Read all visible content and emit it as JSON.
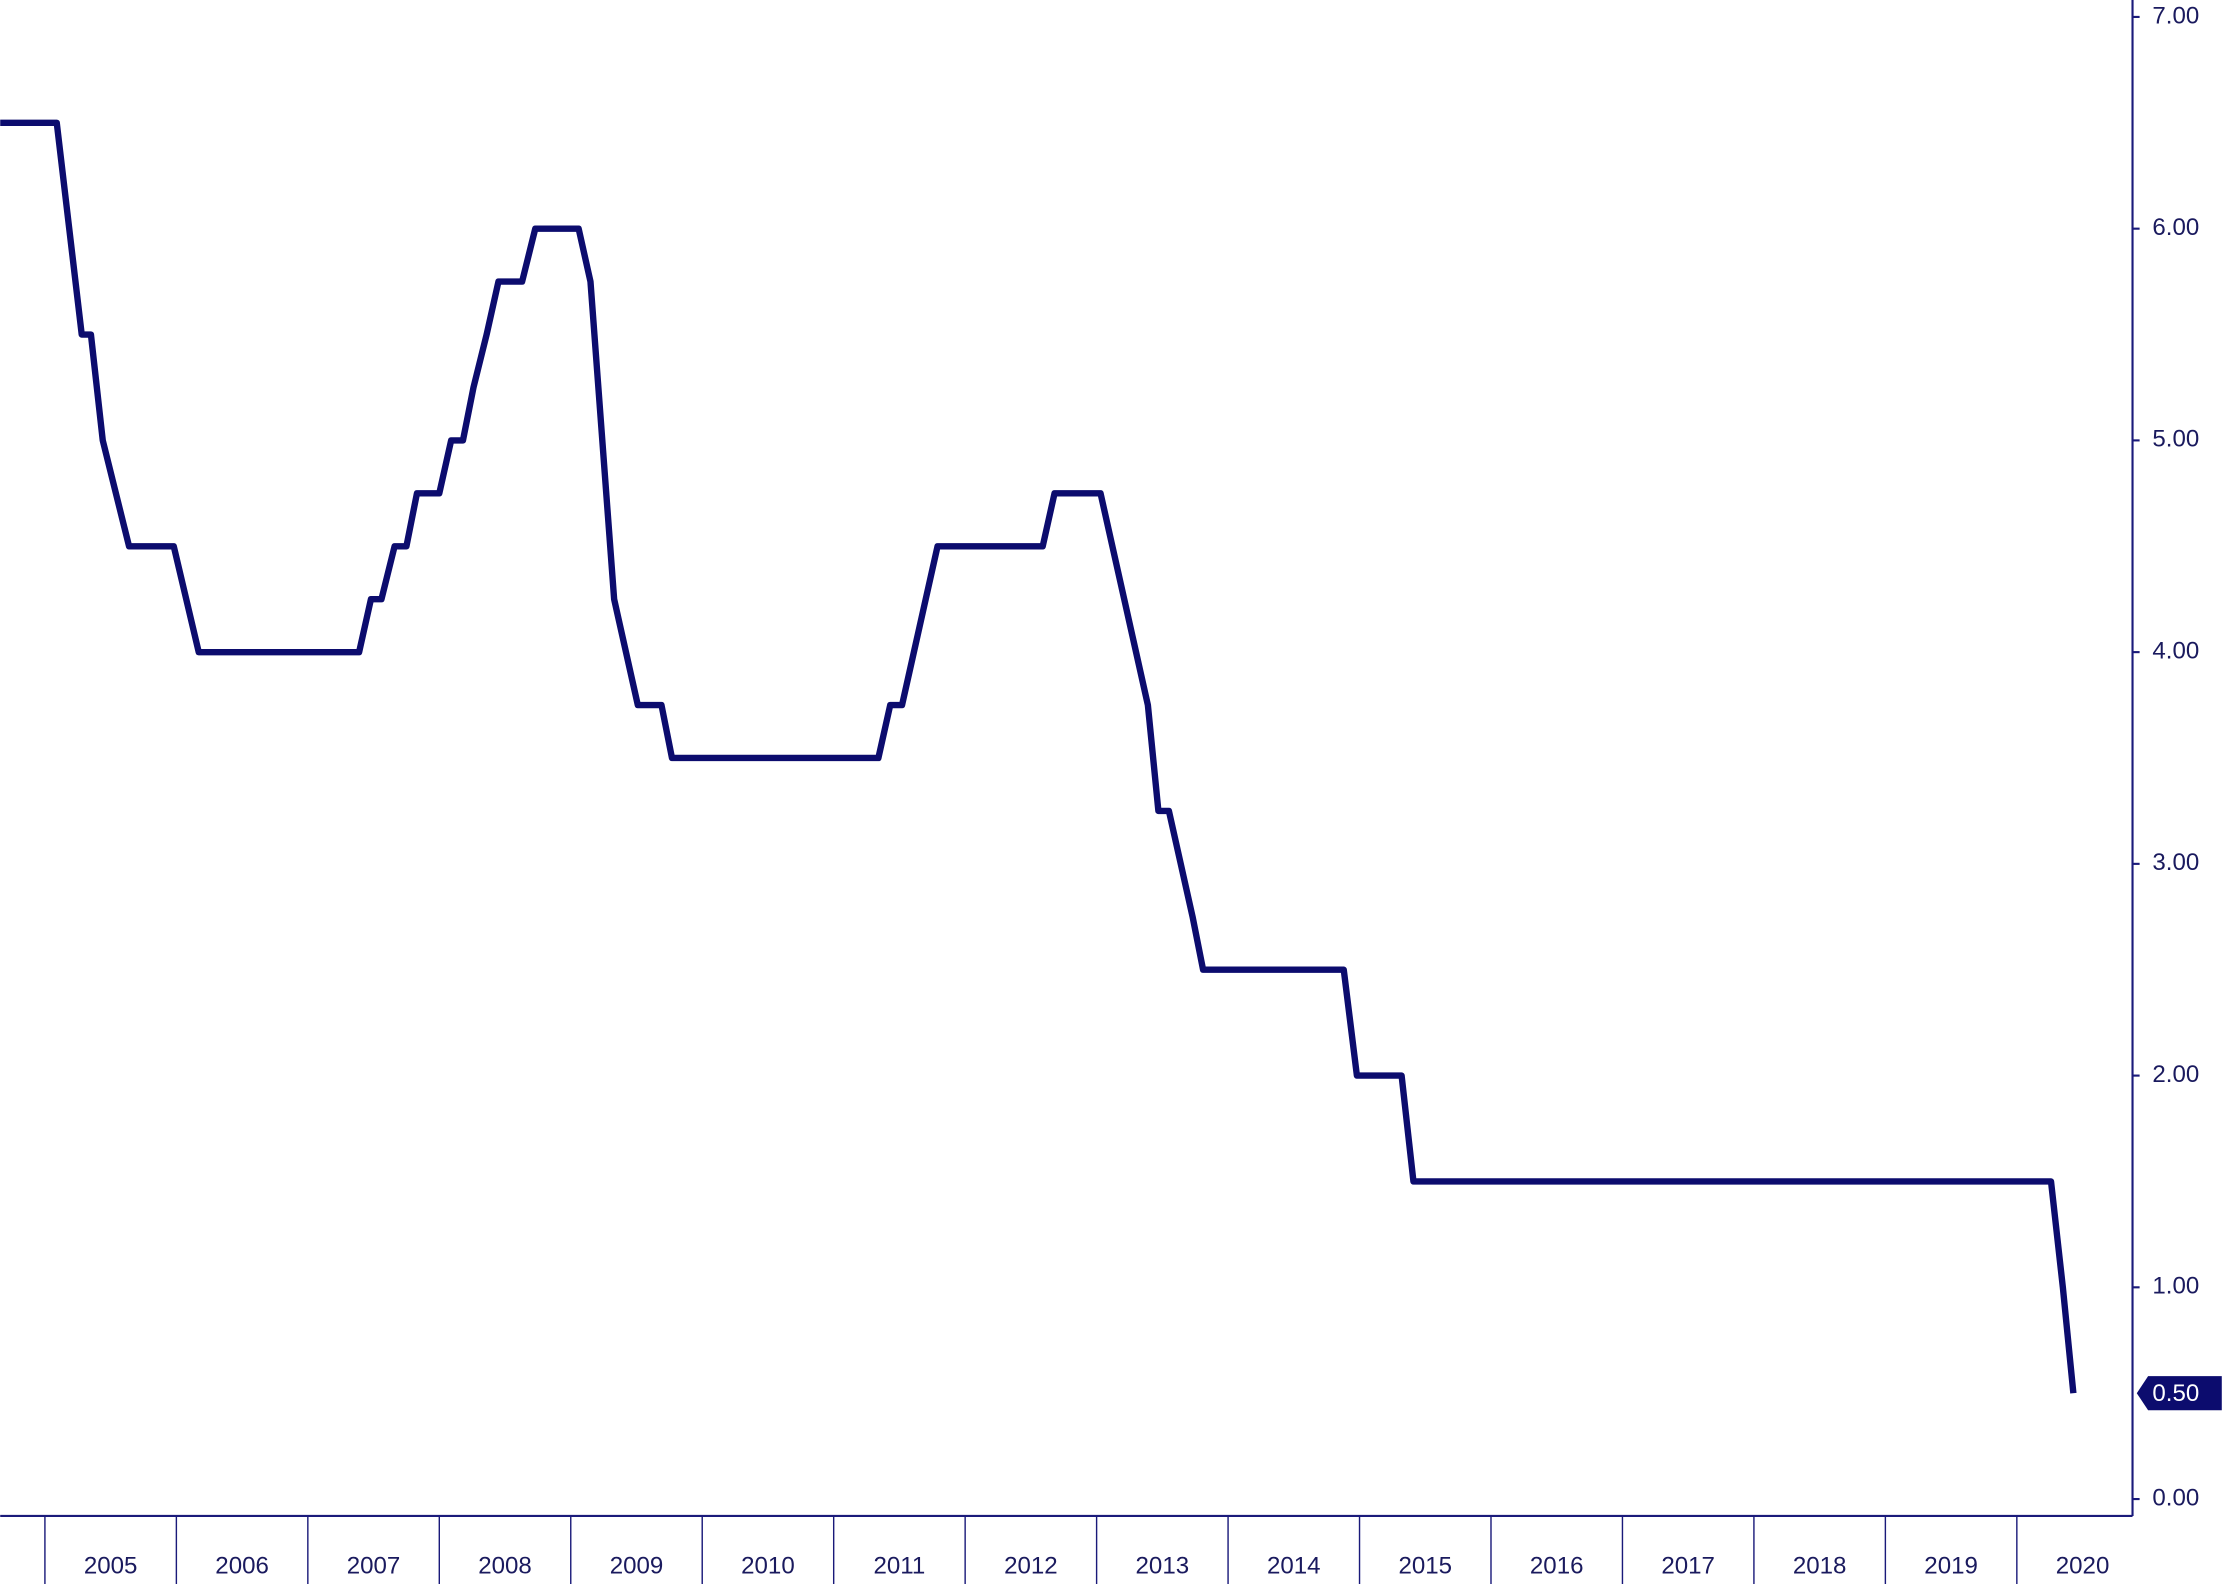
{
  "chart_data": {
    "type": "line",
    "x": [
      2004.66,
      2005.09,
      2005.28,
      2005.35,
      2005.44,
      2005.64,
      2005.98,
      2006.17,
      2007.39,
      2007.48,
      2007.56,
      2007.66,
      2007.75,
      2007.83,
      2008.0,
      2008.09,
      2008.18,
      2008.26,
      2008.36,
      2008.45,
      2008.63,
      2008.73,
      2009.06,
      2009.15,
      2009.33,
      2009.51,
      2009.69,
      2009.77,
      2011.34,
      2011.43,
      2011.52,
      2011.61,
      2011.7,
      2011.79,
      2012.59,
      2012.68,
      2013.03,
      2013.12,
      2013.21,
      2013.3,
      2013.39,
      2013.47,
      2013.55,
      2013.64,
      2013.73,
      2013.81,
      2014.88,
      2014.98,
      2015.32,
      2015.41,
      2020.26,
      2020.35,
      2020.43
    ],
    "values": [
      6.5,
      6.5,
      5.5,
      5.5,
      5.0,
      4.5,
      4.5,
      4.0,
      4.0,
      4.25,
      4.25,
      4.5,
      4.5,
      4.75,
      4.75,
      5.0,
      5.0,
      5.25,
      5.5,
      5.75,
      5.75,
      6.0,
      6.0,
      5.75,
      4.25,
      3.75,
      3.75,
      3.5,
      3.5,
      3.75,
      3.75,
      4.0,
      4.25,
      4.5,
      4.5,
      4.75,
      4.75,
      4.5,
      4.25,
      4.0,
      3.75,
      3.25,
      3.25,
      3.0,
      2.75,
      2.5,
      2.5,
      2.0,
      2.0,
      1.5,
      1.5,
      1.0,
      0.5
    ],
    "value_labels": [
      null,
      null,
      null,
      null,
      null,
      null,
      null,
      null,
      null,
      null,
      null,
      null,
      null,
      null,
      null,
      null,
      null,
      null,
      null,
      null,
      null,
      null,
      null,
      null,
      null,
      null,
      null,
      null,
      null,
      null,
      null,
      null,
      null,
      null,
      null,
      null,
      null,
      null,
      null,
      null,
      null,
      null,
      null,
      null,
      null,
      null,
      null,
      null,
      null,
      null,
      null,
      null,
      "0.50"
    ],
    "color": "#0c0c6e",
    "xlim": [
      2004.66,
      2020.88
    ],
    "xticks": [
      {
        "value": 2005.5,
        "label": "2005"
      },
      {
        "value": 2006.5,
        "label": "2006"
      },
      {
        "value": 2007.5,
        "label": "2007"
      },
      {
        "value": 2008.5,
        "label": "2008"
      },
      {
        "value": 2009.5,
        "label": "2009"
      },
      {
        "value": 2010.5,
        "label": "2010"
      },
      {
        "value": 2011.5,
        "label": "2011"
      },
      {
        "value": 2012.5,
        "label": "2012"
      },
      {
        "value": 2013.5,
        "label": "2013"
      },
      {
        "value": 2014.5,
        "label": "2014"
      },
      {
        "value": 2015.5,
        "label": "2015"
      },
      {
        "value": 2016.5,
        "label": "2016"
      },
      {
        "value": 2017.5,
        "label": "2017"
      },
      {
        "value": 2018.5,
        "label": "2018"
      },
      {
        "value": 2019.5,
        "label": "2019"
      },
      {
        "value": 2020.5,
        "label": "2020"
      }
    ],
    "ylim": [
      -0.08,
      7.08
    ],
    "yticks": [
      {
        "value": 0,
        "label": "0.00"
      },
      {
        "value": 1,
        "label": "1.00"
      },
      {
        "value": 2,
        "label": "2.00"
      },
      {
        "value": 3,
        "label": "3.00"
      },
      {
        "value": 4,
        "label": "4.00"
      },
      {
        "value": 5,
        "label": "5.00"
      },
      {
        "value": 6,
        "label": "6.00"
      },
      {
        "value": 7,
        "label": "7.00"
      }
    ]
  }
}
